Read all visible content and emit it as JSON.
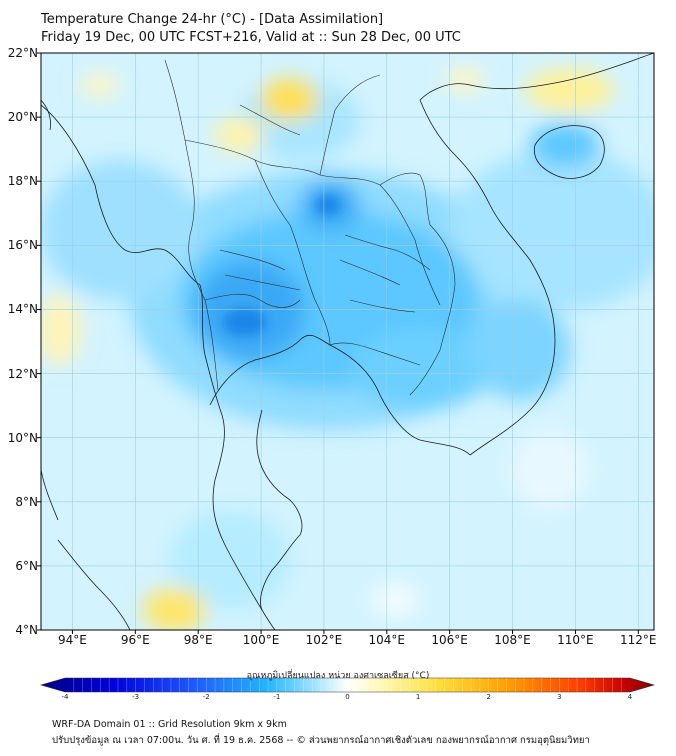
{
  "header": {
    "title_line1": "Temperature Change 24-hr (°C) - [Data Assimilation]",
    "title_line2": "Friday 19 Dec, 00 UTC FCST+216, Valid at :: Sun 28 Dec, 00 UTC"
  },
  "map": {
    "lat_labels": [
      "22°N",
      "20°N",
      "18°N",
      "16°N",
      "14°N",
      "12°N",
      "10°N",
      "8°N",
      "6°N",
      "4°N"
    ],
    "lon_labels": [
      "94°E",
      "96°E",
      "98°E",
      "100°E",
      "102°E",
      "104°E",
      "106°E",
      "108°E",
      "110°E",
      "112°E"
    ],
    "lat_range": [
      4,
      22
    ],
    "lon_range": [
      93,
      112.5
    ],
    "background_color": "#d2f3ff"
  },
  "colorbar": {
    "title": "อุณหภูมิเปลี่ยนแปลง หน่วย องศาเซลเซียส (°C)",
    "ticks": [
      "-4",
      "-3",
      "-2",
      "-1",
      "0",
      "1",
      "2",
      "3",
      "4"
    ],
    "range": [
      -4,
      4
    ],
    "colors": [
      "#00007f",
      "#0000dd",
      "#1e5aff",
      "#23b6ff",
      "#b8ecff",
      "#ffffff",
      "#fff8b0",
      "#ffde3c",
      "#ffa000",
      "#ff3c00",
      "#c80000",
      "#7f0000"
    ]
  },
  "footer": {
    "line1": "WRF-DA Domain 01 :: Grid Resolution 9km x 9km",
    "line2": "ปรับปรุงข้อมูล ณ เวลา 07:00น. วัน ศ. ที่ 19 ธ.ค. 2568 -- © ส่วนพยากรณ์อากาศเชิงตัวเลข กองพยากรณ์อากาศ กรมอุตุนิยมวิทยา"
  }
}
